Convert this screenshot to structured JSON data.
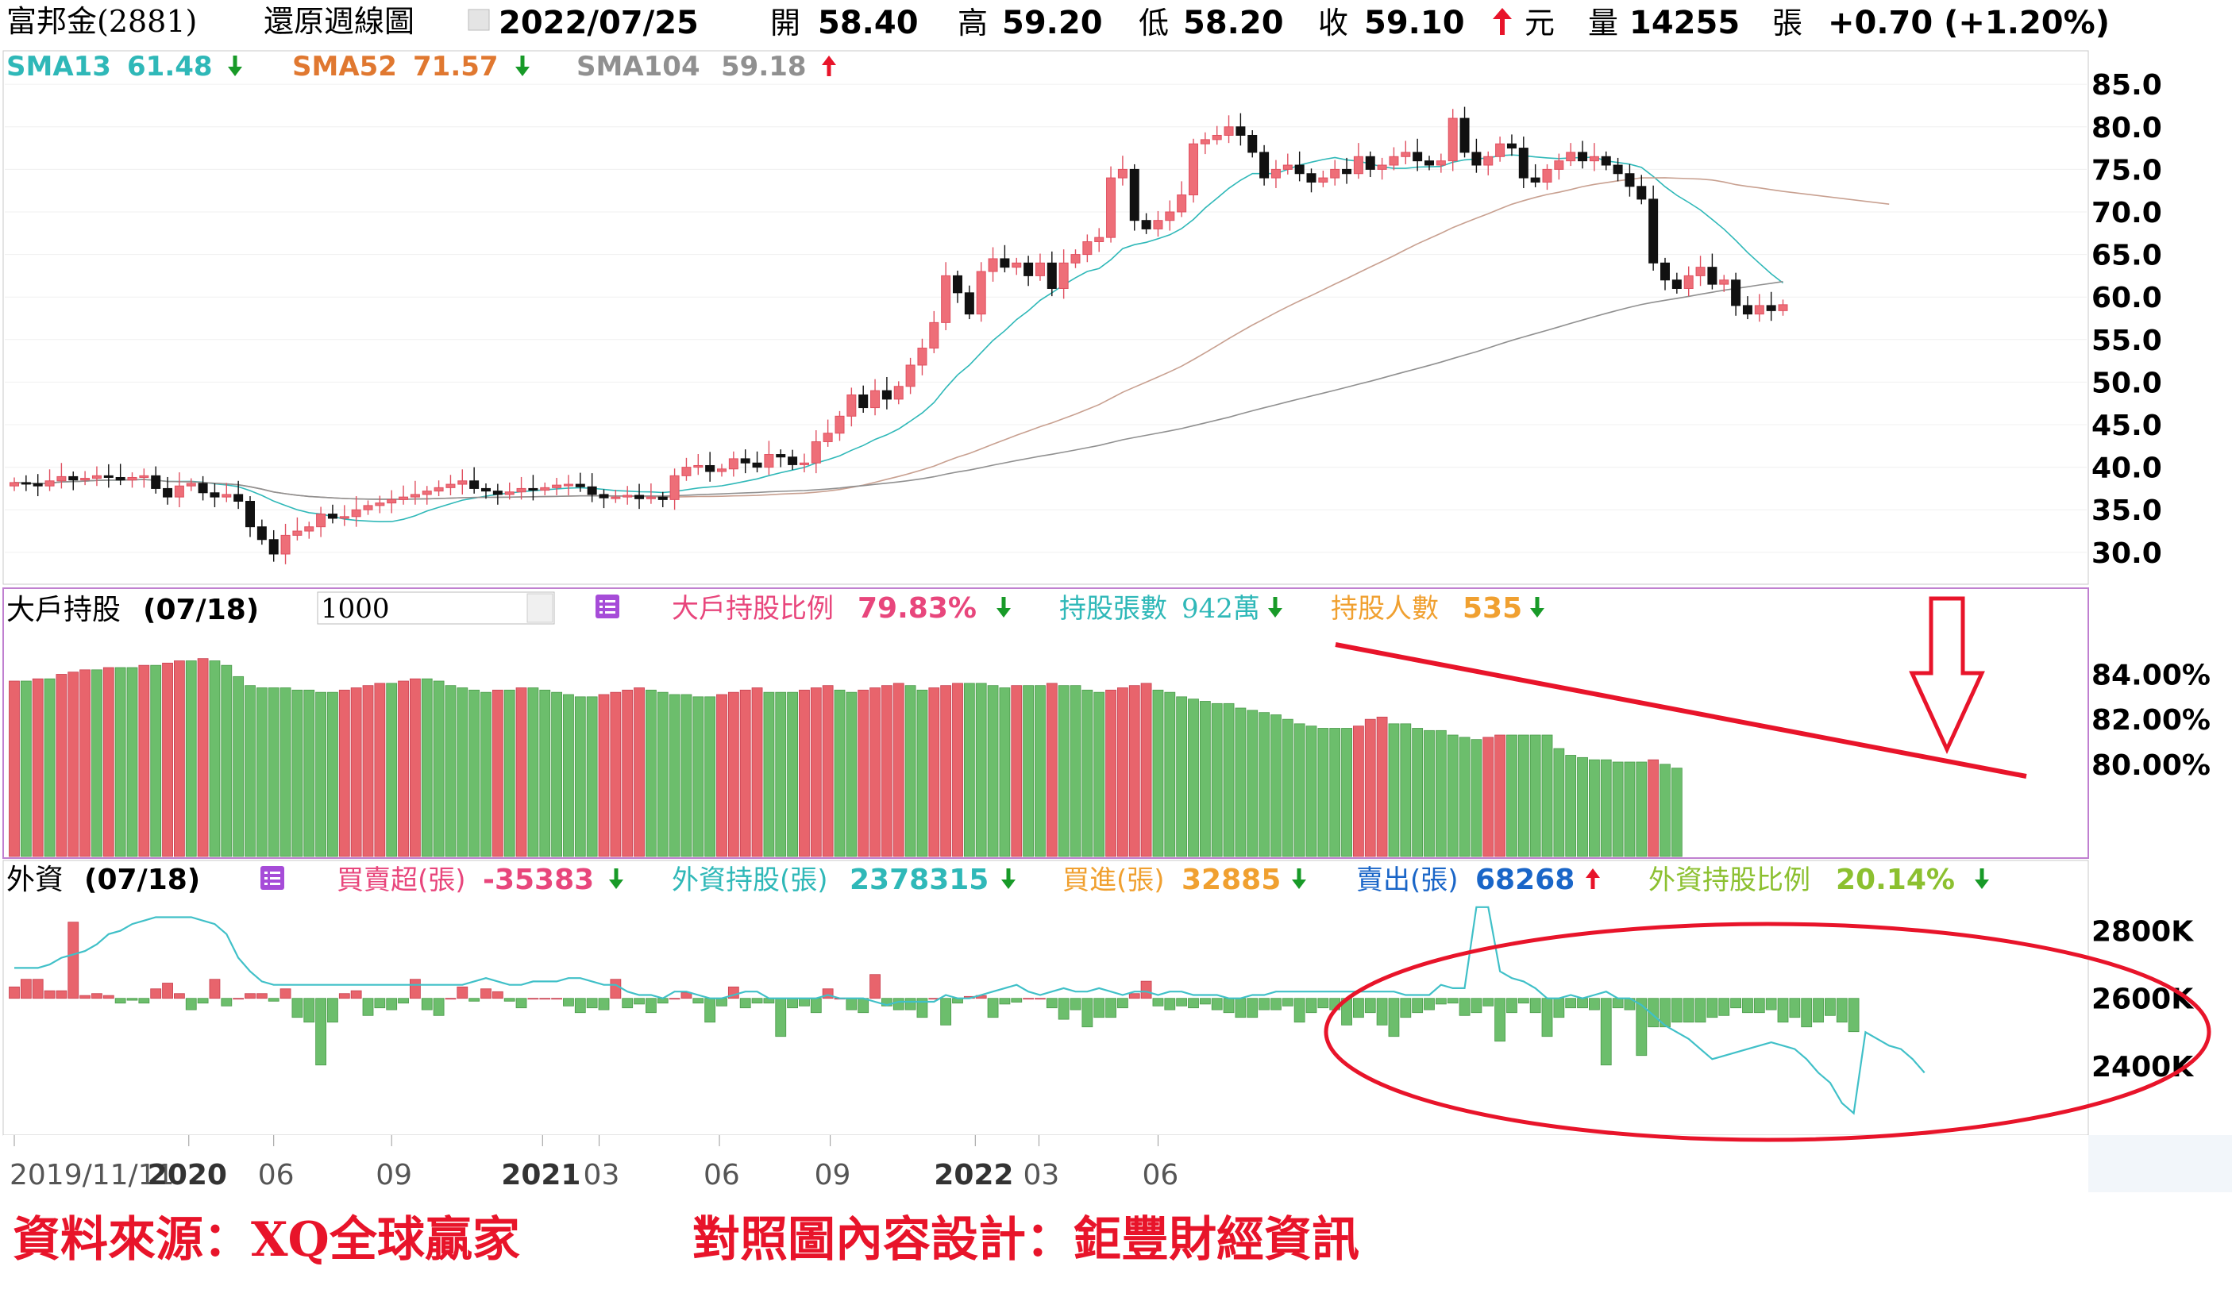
{
  "header": {
    "stock": "富邦金(2881)",
    "chart_type": "還原週線圖",
    "date": "2022/07/25",
    "open_label": "開",
    "open": "58.40",
    "high_label": "高",
    "high": "59.20",
    "low_label": "低",
    "low": "58.20",
    "close_label": "收",
    "close": "59.10",
    "unit": "元",
    "volume_label": "量",
    "volume": "14255",
    "volume_unit": "張",
    "change": "+0.70 (+1.20%)"
  },
  "sma": [
    {
      "label": "SMA13",
      "value": "61.48",
      "dir": "down",
      "color": "#2fb8b8"
    },
    {
      "label": "SMA52",
      "value": "71.57",
      "dir": "down",
      "color": "#e07830"
    },
    {
      "label": "SMA104",
      "value": "59.18",
      "dir": "up",
      "color": "#909090"
    }
  ],
  "holder_panel": {
    "title": "大戶持股",
    "date": "(07/18)",
    "threshold": "1000",
    "items": [
      {
        "label": "大戶持股比例",
        "value": "79.83%",
        "dir": "down",
        "color": "#e8467c"
      },
      {
        "label": "持股張數",
        "value": "942萬",
        "dir": "down",
        "color": "#2fb8b8"
      },
      {
        "label": "持股人數",
        "value": "535",
        "dir": "down",
        "color": "#f0a030"
      }
    ]
  },
  "foreign_panel": {
    "title": "外資",
    "date": "(07/18)",
    "items": [
      {
        "label": "買賣超(張)",
        "value": "-35383",
        "dir": "down",
        "color": "#e8467c"
      },
      {
        "label": "外資持股(張)",
        "value": "2378315",
        "dir": "down",
        "color": "#2fb8b8"
      },
      {
        "label": "買進(張)",
        "value": "32885",
        "dir": "down",
        "color": "#f0a030"
      },
      {
        "label": "賣出(張)",
        "value": "68268",
        "dir": "up",
        "color": "#1a66c8"
      },
      {
        "label": "外資持股比例",
        "value": "20.14%",
        "dir": "down",
        "color": "#8cc030"
      }
    ]
  },
  "x_axis": [
    {
      "label": "2019/11/11",
      "week": 0,
      "bold": false
    },
    {
      "label": "2020",
      "week": 14.8,
      "bold": true
    },
    {
      "label": "06",
      "week": 22,
      "bold": false
    },
    {
      "label": "09",
      "week": 32,
      "bold": false
    },
    {
      "label": "2021",
      "week": 44.8,
      "bold": true
    },
    {
      "label": "03",
      "week": 49.6,
      "bold": false
    },
    {
      "label": "06",
      "week": 59.8,
      "bold": false
    },
    {
      "label": "09",
      "week": 69.2,
      "bold": false
    },
    {
      "label": "2022",
      "week": 81.5,
      "bold": true
    },
    {
      "label": "03",
      "week": 86.9,
      "bold": false
    },
    {
      "label": "06",
      "week": 97,
      "bold": false
    }
  ],
  "footer": {
    "source": "資料來源：XQ全球贏家",
    "design": "對照圖內容設計：鉅豐財經資訊"
  },
  "chart_data": [
    {
      "type": "candlestick",
      "ylim": [
        27,
        88
      ],
      "yticks": [
        30,
        35,
        40,
        45,
        50,
        55,
        60,
        65,
        70,
        75,
        80,
        85
      ],
      "x_start": "2019/11/11",
      "closes": [
        38.2,
        38.1,
        37.8,
        38.4,
        38.9,
        38.5,
        38.7,
        39.0,
        38.8,
        38.5,
        38.8,
        39.0,
        37.5,
        36.5,
        37.8,
        38.1,
        37.0,
        36.5,
        36.8,
        36.0,
        33.0,
        31.5,
        29.8,
        32.0,
        32.5,
        33.0,
        34.5,
        34.0,
        34.2,
        35.0,
        35.5,
        35.8,
        36.2,
        36.5,
        36.8,
        37.2,
        37.6,
        38.0,
        38.4,
        37.5,
        37.2,
        36.8,
        37.1,
        37.5,
        37.3,
        37.6,
        37.9,
        38.0,
        37.7,
        36.8,
        36.4,
        36.5,
        36.7,
        36.3,
        36.5,
        36.2,
        39.0,
        40.0,
        40.2,
        39.5,
        39.8,
        41.0,
        40.5,
        40.0,
        41.5,
        41.2,
        40.3,
        40.5,
        43.0,
        44.0,
        46.0,
        48.5,
        47.0,
        49.0,
        48.0,
        49.5,
        52.0,
        54.0,
        57.0,
        62.5,
        60.5,
        58.0,
        63.0,
        64.5,
        63.5,
        64.0,
        62.5,
        64.0,
        61.0,
        64.0,
        65.0,
        66.5,
        67.0,
        74.0,
        75.0,
        69.0,
        68.0,
        69.0,
        70.0,
        72.0,
        78.0,
        78.5,
        79.0,
        80.0,
        79.0,
        77.0,
        74.0,
        75.0,
        75.5,
        74.5,
        73.5,
        74.0,
        75.0,
        74.5,
        76.5,
        75.0,
        75.5,
        76.5,
        77.0,
        76.0,
        75.5,
        76.0,
        81.0,
        77.0,
        75.5,
        76.5,
        78.0,
        77.5,
        74.0,
        73.5,
        75.0,
        76.0,
        77.0,
        76.0,
        76.5,
        75.5,
        74.5,
        73.0,
        71.5,
        64.0,
        62.0,
        61.0,
        62.5,
        63.5,
        61.5,
        62.0,
        59.0,
        58.0,
        59.0,
        58.4,
        59.1
      ],
      "series": [
        {
          "name": "SMA13",
          "color": "#2fb8b8"
        },
        {
          "name": "SMA52",
          "color": "#c8a090"
        },
        {
          "name": "SMA104",
          "color": "#909090"
        }
      ]
    },
    {
      "type": "bar",
      "ylim": [
        75.9,
        86.1
      ],
      "yticks": [
        80,
        82,
        84
      ],
      "values": [
        83.7,
        83.7,
        83.8,
        83.8,
        84.0,
        84.1,
        84.2,
        84.2,
        84.3,
        84.3,
        84.3,
        84.4,
        84.4,
        84.5,
        84.6,
        84.6,
        84.7,
        84.6,
        84.4,
        83.9,
        83.5,
        83.4,
        83.4,
        83.4,
        83.3,
        83.3,
        83.2,
        83.2,
        83.3,
        83.4,
        83.5,
        83.6,
        83.6,
        83.7,
        83.8,
        83.8,
        83.7,
        83.5,
        83.4,
        83.3,
        83.2,
        83.3,
        83.3,
        83.4,
        83.4,
        83.3,
        83.2,
        83.1,
        83.0,
        83.0,
        83.1,
        83.2,
        83.3,
        83.4,
        83.3,
        83.2,
        83.1,
        83.1,
        83.0,
        83.0,
        83.1,
        83.2,
        83.3,
        83.4,
        83.2,
        83.2,
        83.2,
        83.3,
        83.4,
        83.5,
        83.3,
        83.2,
        83.3,
        83.4,
        83.5,
        83.6,
        83.5,
        83.3,
        83.4,
        83.5,
        83.6,
        83.6,
        83.6,
        83.5,
        83.4,
        83.5,
        83.5,
        83.5,
        83.6,
        83.5,
        83.5,
        83.3,
        83.2,
        83.3,
        83.4,
        83.5,
        83.6,
        83.3,
        83.2,
        83.0,
        82.9,
        82.8,
        82.7,
        82.7,
        82.5,
        82.4,
        82.3,
        82.2,
        82.0,
        81.8,
        81.7,
        81.6,
        81.6,
        81.6,
        81.7,
        82.0,
        82.1,
        81.8,
        81.8,
        81.6,
        81.5,
        81.5,
        81.3,
        81.2,
        81.1,
        81.2,
        81.3,
        81.3,
        81.3,
        81.3,
        81.3,
        80.7,
        80.4,
        80.3,
        80.2,
        80.2,
        80.1,
        80.1,
        80.1,
        80.2,
        80.0,
        79.83
      ]
    },
    {
      "type": "bar+line",
      "ylim": [
        2200,
        2900
      ],
      "yticks": [
        2400,
        2600,
        2800
      ],
      "y_unit": "K",
      "net_buy": [
        12,
        20,
        20,
        8,
        8,
        80,
        3,
        5,
        3,
        -5,
        -2,
        -5,
        10,
        16,
        5,
        -12,
        -5,
        20,
        -8,
        0,
        5,
        5,
        -3,
        10,
        -20,
        -25,
        -70,
        -25,
        5,
        8,
        -18,
        -10,
        -12,
        -5,
        20,
        -12,
        -18,
        0,
        12,
        -3,
        10,
        7,
        -3,
        -10,
        0,
        0,
        0,
        -8,
        -15,
        -10,
        -12,
        20,
        -10,
        -6,
        -15,
        -5,
        0,
        6,
        -5,
        -25,
        -8,
        12,
        -10,
        -5,
        -5,
        -40,
        -10,
        -8,
        -15,
        10,
        0,
        -12,
        -15,
        25,
        -8,
        -12,
        -12,
        -20,
        0,
        -28,
        -5,
        2,
        3,
        -20,
        -6,
        -4,
        0,
        0,
        -10,
        -22,
        -12,
        -30,
        -20,
        -20,
        -10,
        5,
        18,
        -8,
        -12,
        -8,
        -10,
        -6,
        -12,
        -15,
        -20,
        -20,
        -12,
        -12,
        -8,
        -25,
        -15,
        -10,
        -12,
        -28,
        -20,
        -15,
        -28,
        -40,
        -20,
        -15,
        -12,
        -6,
        -5,
        -18,
        -15,
        -8,
        -45,
        -15,
        -5,
        -15,
        -40,
        -20,
        -10,
        -10,
        -12,
        -70,
        -10,
        -12,
        -60,
        -30,
        -30,
        -25,
        -25,
        -25,
        -20,
        -18,
        -10,
        -15,
        -15,
        -12,
        -25,
        -20,
        -30,
        -25,
        -18,
        -25,
        -35
      ],
      "holding": [
        2690,
        2690,
        2690,
        2700,
        2720,
        2730,
        2740,
        2760,
        2790,
        2800,
        2820,
        2830,
        2840,
        2840,
        2840,
        2840,
        2830,
        2820,
        2790,
        2720,
        2680,
        2650,
        2640,
        2640,
        2640,
        2640,
        2640,
        2640,
        2640,
        2640,
        2640,
        2640,
        2640,
        2640,
        2640,
        2640,
        2640,
        2640,
        2640,
        2650,
        2660,
        2650,
        2640,
        2640,
        2650,
        2650,
        2650,
        2660,
        2660,
        2650,
        2640,
        2640,
        2620,
        2610,
        2610,
        2600,
        2620,
        2620,
        2610,
        2600,
        2600,
        2610,
        2620,
        2620,
        2600,
        2600,
        2600,
        2600,
        2600,
        2610,
        2600,
        2600,
        2600,
        2590,
        2580,
        2590,
        2590,
        2590,
        2590,
        2610,
        2600,
        2600,
        2610,
        2620,
        2630,
        2640,
        2620,
        2610,
        2620,
        2630,
        2620,
        2620,
        2630,
        2620,
        2610,
        2620,
        2620,
        2610,
        2620,
        2620,
        2610,
        2610,
        2610,
        2600,
        2600,
        2610,
        2610,
        2620,
        2620,
        2620,
        2620,
        2620,
        2620,
        2620,
        2620,
        2620,
        2620,
        2620,
        2610,
        2610,
        2610,
        2640,
        2630,
        2630,
        2870,
        2870,
        2680,
        2660,
        2650,
        2630,
        2600,
        2600,
        2610,
        2600,
        2610,
        2620,
        2600,
        2600,
        2580,
        2550,
        2520,
        2500,
        2480,
        2450,
        2420,
        2430,
        2440,
        2450,
        2460,
        2470,
        2460,
        2450,
        2420,
        2380,
        2350,
        2290,
        2260,
        2500,
        2480,
        2460,
        2450,
        2420,
        2380
      ]
    }
  ],
  "annotations": {
    "trend_line": "holder-decline",
    "down_arrow": "holder-decline-arrow",
    "ellipse": "foreign-selling-zone"
  }
}
